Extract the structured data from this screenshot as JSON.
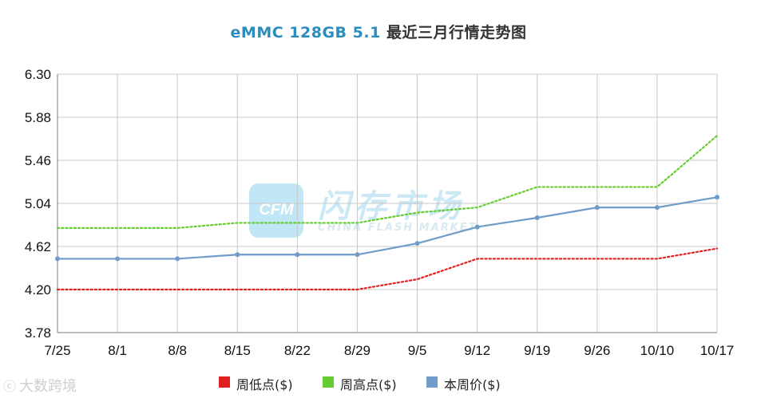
{
  "title_main": "eMMC 128GB 5.1",
  "title_sub": "最近三月行情走势图",
  "legend": {
    "low": "周低点($)",
    "high": "周高点($)",
    "avg": "本周价($)"
  },
  "colors": {
    "low": "#e02020",
    "high": "#66cc33",
    "avg": "#6f9cc8",
    "grid": "#c8c8c8",
    "title": "#2b8cbe"
  },
  "watermark": {
    "logo": "CFM",
    "cn": "闪存市场",
    "en": "CHINA FLASH MARKET"
  },
  "corner_mark": "大数跨境",
  "chart_data": {
    "type": "line",
    "title": "eMMC 128GB 5.1 最近三月行情走势图",
    "categories": [
      "7/25",
      "8/1",
      "8/8",
      "8/15",
      "8/22",
      "8/29",
      "9/5",
      "9/12",
      "9/19",
      "9/26",
      "10/10",
      "10/17"
    ],
    "ylim": [
      3.78,
      6.3
    ],
    "yticks": [
      "3.78",
      "4.20",
      "4.62",
      "5.04",
      "5.46",
      "5.88",
      "6.30"
    ],
    "grid": true,
    "legend_position": "bottom",
    "series": [
      {
        "key": "low",
        "name": "周低点($)",
        "style": "dotted",
        "values": [
          4.2,
          4.2,
          4.2,
          4.2,
          4.2,
          4.2,
          4.3,
          4.5,
          4.5,
          4.5,
          4.5,
          4.6
        ]
      },
      {
        "key": "high",
        "name": "周高点($)",
        "style": "dotted",
        "values": [
          4.8,
          4.8,
          4.8,
          4.85,
          4.85,
          4.85,
          4.95,
          5.0,
          5.2,
          5.2,
          5.2,
          5.7
        ]
      },
      {
        "key": "avg",
        "name": "本周价($)",
        "style": "solid-markers",
        "values": [
          4.5,
          4.5,
          4.5,
          4.54,
          4.54,
          4.54,
          4.65,
          4.81,
          4.9,
          5.0,
          5.0,
          5.1
        ]
      }
    ]
  }
}
